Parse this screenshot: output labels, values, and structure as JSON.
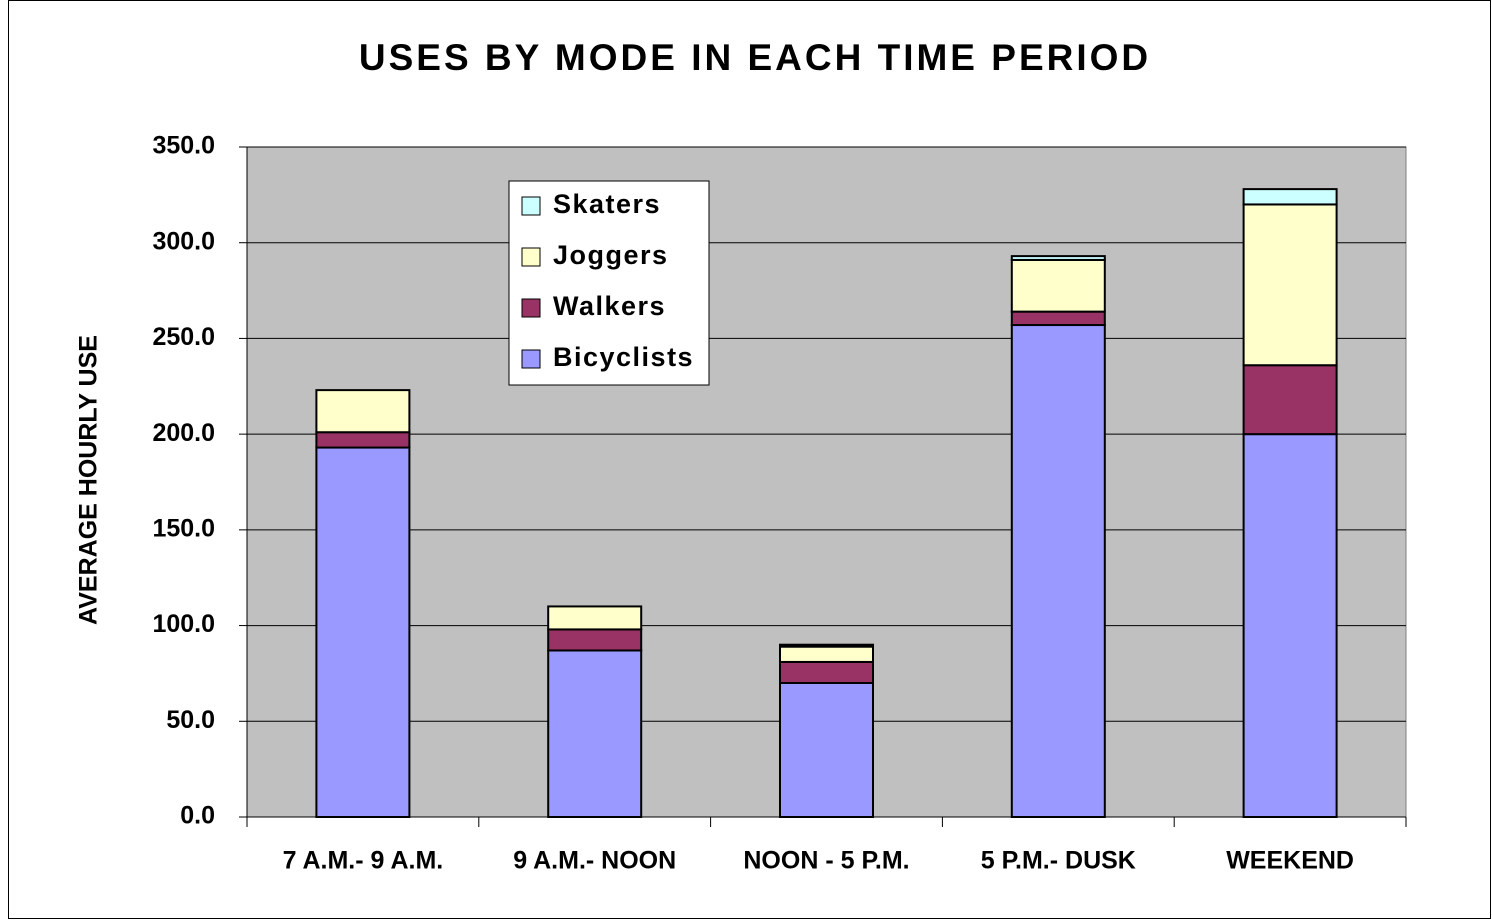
{
  "chart_data": {
    "type": "stacked_bar",
    "title": "USES BY MODE IN EACH TIME PERIOD",
    "y_label": "AVERAGE HOURLY USE",
    "categories": [
      "7 A.M.- 9 A.M.",
      "9 A.M.- NOON",
      "NOON - 5 P.M.",
      "5 P.M.- DUSK",
      "WEEKEND"
    ],
    "series": [
      {
        "name": "Bicyclists",
        "color": "#9999ff",
        "values": [
          193,
          87,
          70,
          257,
          200
        ]
      },
      {
        "name": "Walkers",
        "color": "#993366",
        "values": [
          8,
          11,
          11,
          7,
          36
        ]
      },
      {
        "name": "Joggers",
        "color": "#ffffcc",
        "values": [
          22,
          12,
          8,
          27,
          84
        ]
      },
      {
        "name": "Skaters",
        "color": "#ccffff",
        "values": [
          0,
          0,
          1,
          2,
          8
        ]
      }
    ],
    "ylim": [
      0,
      350
    ],
    "yticks": [
      {
        "value": 0,
        "label": "0.0"
      },
      {
        "value": 50,
        "label": "50.0"
      },
      {
        "value": 100,
        "label": "100.0"
      },
      {
        "value": 150,
        "label": "150.0"
      },
      {
        "value": 200,
        "label": "200.0"
      },
      {
        "value": 250,
        "label": "250.0"
      },
      {
        "value": 300,
        "label": "300.0"
      },
      {
        "value": 350,
        "label": "350.0"
      }
    ],
    "grid": true,
    "legend": "top-left"
  }
}
